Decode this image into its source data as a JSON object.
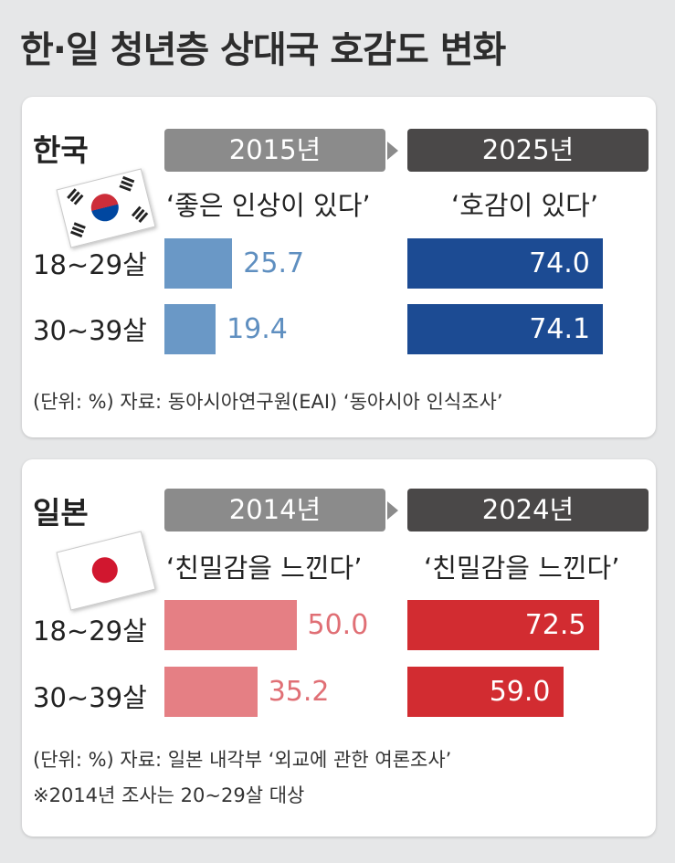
{
  "title": "한·일 청년층 상대국 호감도 변화",
  "colors": {
    "kr_past": "#6a98c6",
    "kr_present": "#1c4b93",
    "jp_past": "#e57f84",
    "jp_present": "#d22c31",
    "kr_past_text": "#5f8fc0",
    "jp_past_text": "#e06f75"
  },
  "chart_data": [
    {
      "type": "bar",
      "country": "한국",
      "flag": "korea-flag",
      "categories": [
        "18~29살",
        "30~39살"
      ],
      "series": [
        {
          "name": "2015년",
          "question": "‘좋은 인상이 있다’",
          "values": [
            25.7,
            19.4
          ]
        },
        {
          "name": "2025년",
          "question": "‘호감이 있다’",
          "values": [
            74.0,
            74.1
          ]
        }
      ],
      "notes": [
        "(단위: %) 자료: 동아시아연구원(EAI) ‘동아시아 인식조사’"
      ]
    },
    {
      "type": "bar",
      "country": "일본",
      "flag": "japan-flag",
      "categories": [
        "18~29살",
        "30~39살"
      ],
      "series": [
        {
          "name": "2014년",
          "question": "‘친밀감을 느낀다’",
          "values": [
            50.0,
            35.2
          ]
        },
        {
          "name": "2024년",
          "question": "‘친밀감을 느낀다’",
          "values": [
            72.5,
            59.0
          ]
        }
      ],
      "notes": [
        "(단위: %) 자료: 일본 내각부 ‘외교에 관한 여론조사’",
        "※2014년 조사는 20~29살 대상"
      ]
    }
  ]
}
